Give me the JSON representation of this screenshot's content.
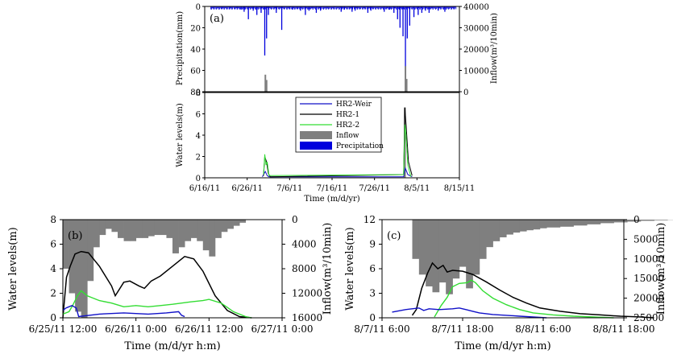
{
  "chart_data": [
    {
      "type": "line",
      "panel": "(a)",
      "xlabel": "Time (m/d/yr)",
      "x_ticks": [
        "6/16/11",
        "6/26/11",
        "7/6/11",
        "7/16/11",
        "7/26/11",
        "8/5/11",
        "8/15/11"
      ],
      "top": {
        "ylabel_left": "Precipitation(mm)",
        "ylabel_right": "Inflow(m³/10min)",
        "left_ticks": [
          "0",
          "20",
          "40",
          "60",
          "80"
        ],
        "right_ticks": [
          "40000",
          "30000",
          "20000",
          "10000",
          "0"
        ],
        "ylim_left": [
          80,
          0
        ],
        "ylim_right": [
          0,
          40000
        ],
        "precipitation_peaks": [
          [
            6.0,
            3
          ],
          [
            6.5,
            5
          ],
          [
            7.2,
            12
          ],
          [
            8.0,
            4
          ],
          [
            8.6,
            8
          ],
          [
            9.3,
            6
          ],
          [
            9.9,
            46
          ],
          [
            10.2,
            30
          ],
          [
            10.5,
            8
          ],
          [
            11.8,
            6
          ],
          [
            12.7,
            22
          ],
          [
            14.5,
            3
          ],
          [
            15.8,
            4
          ],
          [
            16.6,
            8
          ],
          [
            17.2,
            4
          ],
          [
            18.4,
            6
          ],
          [
            19.1,
            4
          ],
          [
            22.5,
            5
          ],
          [
            23.0,
            3
          ],
          [
            24.3,
            5
          ],
          [
            24.8,
            4
          ],
          [
            26.9,
            6
          ],
          [
            27.4,
            4
          ],
          [
            29.6,
            5
          ],
          [
            30.5,
            3
          ],
          [
            31.2,
            6
          ],
          [
            31.8,
            12
          ],
          [
            32.2,
            20
          ],
          [
            32.7,
            28
          ],
          [
            33.1,
            64
          ],
          [
            33.4,
            30
          ],
          [
            33.8,
            18
          ],
          [
            34.5,
            10
          ],
          [
            35.2,
            8
          ],
          [
            35.8,
            6
          ],
          [
            36.4,
            4
          ],
          [
            37.0,
            6
          ],
          [
            38.5,
            4
          ],
          [
            39.6,
            5
          ]
        ],
        "inflow_peaks": [
          [
            10.0,
            8000
          ],
          [
            10.2,
            5500
          ],
          [
            33.1,
            12000
          ],
          [
            33.3,
            6000
          ]
        ]
      },
      "bottom": {
        "ylabel_left": "Water levels(m)",
        "left_ticks": [
          "0",
          "2",
          "4",
          "6",
          "8"
        ],
        "ylim": [
          0,
          8
        ],
        "series": [
          {
            "name": "HR2-Weir",
            "points": [
              [
                9.5,
                0.1
              ],
              [
                10.0,
                0.6
              ],
              [
                10.3,
                0.2
              ],
              [
                10.6,
                0.1
              ],
              [
                32.8,
                0.1
              ],
              [
                33.1,
                0.9
              ],
              [
                33.5,
                0.3
              ],
              [
                34.2,
                0.1
              ]
            ]
          },
          {
            "name": "HR2-1",
            "points": [
              [
                9.7,
                0.2
              ],
              [
                9.9,
                2.0
              ],
              [
                10.2,
                1.5
              ],
              [
                10.5,
                0.4
              ],
              [
                10.8,
                0.1
              ],
              [
                32.8,
                0.3
              ],
              [
                33.0,
                6.6
              ],
              [
                33.2,
                5.0
              ],
              [
                33.6,
                1.5
              ],
              [
                34.2,
                0.2
              ]
            ]
          },
          {
            "name": "HR2-2",
            "points": [
              [
                9.7,
                0.3
              ],
              [
                9.9,
                2.2
              ],
              [
                10.1,
                1.2
              ],
              [
                10.3,
                1.5
              ],
              [
                10.6,
                0.2
              ],
              [
                32.8,
                0.3
              ],
              [
                33.0,
                5.0
              ],
              [
                33.2,
                4.0
              ],
              [
                33.5,
                1.2
              ],
              [
                34.0,
                0.1
              ]
            ]
          }
        ],
        "legend": [
          "HR2-Weir",
          "HR2-1",
          "HR2-2",
          "Inflow",
          "Precipitation"
        ]
      }
    },
    {
      "type": "line",
      "panel": "(b)",
      "xlabel": "Time (m/d/yr h:m)",
      "ylabel_left": "Water levels(m)",
      "ylabel_right": "Inflow(m³/10min)",
      "x_ticks": [
        "6/25/11 12:00",
        "6/26/11 0:00",
        "6/26/11 12:00",
        "6/27/11 0:00"
      ],
      "left_ticks": [
        "0",
        "2",
        "4",
        "6",
        "8"
      ],
      "right_ticks": [
        "0",
        "4000",
        "8000",
        "12000",
        "16000"
      ],
      "ylim_left": [
        0,
        8
      ],
      "ylim_right_inverted": [
        0,
        16000
      ],
      "inflow": [
        [
          0,
          8000
        ],
        [
          1,
          12000
        ],
        [
          2,
          15000
        ],
        [
          3,
          16000
        ],
        [
          4,
          10000
        ],
        [
          5,
          4500
        ],
        [
          6,
          2500
        ],
        [
          7,
          1500
        ],
        [
          8,
          2000
        ],
        [
          9,
          3000
        ],
        [
          10,
          3500
        ],
        [
          11,
          3500
        ],
        [
          12,
          3000
        ],
        [
          13,
          3000
        ],
        [
          14,
          2700
        ],
        [
          15,
          2500
        ],
        [
          16,
          2500
        ],
        [
          17,
          3000
        ],
        [
          18,
          5500
        ],
        [
          19,
          4500
        ],
        [
          20,
          3500
        ],
        [
          21,
          3000
        ],
        [
          22,
          3500
        ],
        [
          23,
          5000
        ],
        [
          24,
          6000
        ],
        [
          25,
          3000
        ],
        [
          26,
          2000
        ],
        [
          27,
          1500
        ],
        [
          28,
          1000
        ],
        [
          29,
          500
        ],
        [
          30,
          0
        ]
      ],
      "series": [
        {
          "name": "HR2-1",
          "points": [
            [
              0,
              0
            ],
            [
              0.6,
              3.3
            ],
            [
              1.2,
              4.2
            ],
            [
              2,
              5.2
            ],
            [
              3,
              5.4
            ],
            [
              4.2,
              5.3
            ],
            [
              6,
              4.2
            ],
            [
              8,
              2.6
            ],
            [
              8.6,
              1.8
            ],
            [
              10,
              2.9
            ],
            [
              11,
              3.0
            ],
            [
              12.5,
              2.6
            ],
            [
              13.4,
              2.4
            ],
            [
              14.5,
              3.0
            ],
            [
              16,
              3.4
            ],
            [
              18.5,
              4.4
            ],
            [
              20,
              5.0
            ],
            [
              21.5,
              4.8
            ],
            [
              23,
              3.8
            ],
            [
              25,
              1.8
            ],
            [
              27,
              0.6
            ],
            [
              29,
              0.1
            ],
            [
              31,
              0
            ]
          ]
        },
        {
          "name": "HR2-2",
          "points": [
            [
              0,
              0.3
            ],
            [
              1,
              0.5
            ],
            [
              1.6,
              1.0
            ],
            [
              2.4,
              1.8
            ],
            [
              3,
              2.2
            ],
            [
              4,
              1.8
            ],
            [
              6,
              1.4
            ],
            [
              8,
              1.2
            ],
            [
              10,
              0.9
            ],
            [
              12,
              1.0
            ],
            [
              14,
              0.9
            ],
            [
              16,
              1.0
            ],
            [
              18,
              1.1
            ],
            [
              21,
              1.3
            ],
            [
              23,
              1.4
            ],
            [
              24,
              1.5
            ],
            [
              26,
              1.2
            ],
            [
              28,
              0.5
            ],
            [
              30,
              0.1
            ],
            [
              31,
              0
            ]
          ]
        },
        {
          "name": "HR2-Weir",
          "points": [
            [
              0,
              0.6
            ],
            [
              0.5,
              0.8
            ],
            [
              1.5,
              1.0
            ],
            [
              2.2,
              0.8
            ],
            [
              2.6,
              0.1
            ],
            [
              6,
              0.3
            ],
            [
              10,
              0.4
            ],
            [
              14,
              0.3
            ],
            [
              17,
              0.4
            ],
            [
              19,
              0.5
            ],
            [
              19.5,
              0.2
            ],
            [
              20,
              0.1
            ]
          ]
        }
      ]
    },
    {
      "type": "line",
      "panel": "(c)",
      "xlabel": "Time (m/d/yr h:m)",
      "ylabel_left": "Water levels(m)",
      "ylabel_right": "Inflow(m³/10min)",
      "x_ticks": [
        "8/7/11 6:00",
        "8/7/11 18:00",
        "8/8/11 6:00",
        "8/8/11 18:00"
      ],
      "left_ticks": [
        "0",
        "3",
        "6",
        "9",
        "12"
      ],
      "right_ticks": [
        "0",
        "5000",
        "10000",
        "15000",
        "20000",
        "25000"
      ],
      "ylim_left": [
        0,
        12
      ],
      "ylim_right_inverted": [
        0,
        25000
      ],
      "inflow": [
        [
          0,
          10000
        ],
        [
          1,
          14000
        ],
        [
          2,
          17000
        ],
        [
          3,
          18500
        ],
        [
          4,
          16000
        ],
        [
          5,
          19000
        ],
        [
          6,
          15000
        ],
        [
          7,
          12000
        ],
        [
          8,
          17500
        ],
        [
          9,
          14000
        ],
        [
          10,
          10000
        ],
        [
          11,
          7000
        ],
        [
          12,
          5500
        ],
        [
          13,
          4500
        ],
        [
          14,
          3800
        ],
        [
          15,
          3300
        ],
        [
          16,
          3000
        ],
        [
          17,
          2700
        ],
        [
          18,
          2500
        ],
        [
          19,
          2200
        ],
        [
          20,
          2000
        ],
        [
          22,
          1800
        ],
        [
          24,
          1500
        ],
        [
          26,
          1200
        ],
        [
          28,
          900
        ],
        [
          30,
          700
        ],
        [
          32,
          500
        ],
        [
          34,
          300
        ],
        [
          36,
          150
        ],
        [
          38,
          50
        ],
        [
          40,
          0
        ]
      ],
      "series": [
        {
          "name": "HR2-1",
          "points": [
            [
              0,
              0.3
            ],
            [
              0.6,
              1.0
            ],
            [
              1.4,
              3.6
            ],
            [
              2.3,
              5.5
            ],
            [
              3,
              6.7
            ],
            [
              3.8,
              6.0
            ],
            [
              4.6,
              6.4
            ],
            [
              5.2,
              5.6
            ],
            [
              6,
              5.8
            ],
            [
              7.5,
              5.7
            ],
            [
              9,
              5.3
            ],
            [
              11,
              4.4
            ],
            [
              13,
              3.4
            ],
            [
              15,
              2.5
            ],
            [
              17,
              1.8
            ],
            [
              19,
              1.2
            ],
            [
              22,
              0.8
            ],
            [
              25,
              0.5
            ],
            [
              28,
              0.35
            ],
            [
              31,
              0.2
            ],
            [
              34,
              0.1
            ],
            [
              36,
              0
            ]
          ]
        },
        {
          "name": "HR2-2",
          "points": [
            [
              3.3,
              0.1
            ],
            [
              4.3,
              1.5
            ],
            [
              5.2,
              2.5
            ],
            [
              6,
              3.8
            ],
            [
              7,
              4.2
            ],
            [
              8.2,
              4.3
            ],
            [
              8.8,
              4.6
            ],
            [
              9.4,
              4.3
            ],
            [
              10.5,
              3.3
            ],
            [
              12,
              2.4
            ],
            [
              14,
              1.6
            ],
            [
              16,
              1.0
            ],
            [
              18,
              0.6
            ],
            [
              21,
              0.35
            ],
            [
              24,
              0.2
            ],
            [
              27,
              0.1
            ],
            [
              30,
              0
            ]
          ]
        },
        {
          "name": "HR2-Weir",
          "points": [
            [
              -3,
              0.7
            ],
            [
              -1,
              1.0
            ],
            [
              0,
              1.1
            ],
            [
              1,
              1.2
            ],
            [
              1.7,
              0.9
            ],
            [
              2.5,
              1.1
            ],
            [
              4,
              1.0
            ],
            [
              6,
              1.1
            ],
            [
              7,
              1.2
            ],
            [
              8,
              1.0
            ],
            [
              9,
              0.8
            ],
            [
              10,
              0.6
            ],
            [
              11,
              0.5
            ],
            [
              12,
              0.4
            ],
            [
              14,
              0.3
            ],
            [
              16,
              0.2
            ],
            [
              18,
              0.1
            ],
            [
              20,
              0
            ]
          ]
        }
      ]
    }
  ],
  "panel_labels": {
    "a": "(a)",
    "b": "(b)",
    "c": "(c)"
  },
  "colors": {
    "weir": "#1010c8",
    "hr21": "#000000",
    "hr22": "#33dd33",
    "inflow": "#7f7f7f",
    "precip": "#0000dd"
  }
}
